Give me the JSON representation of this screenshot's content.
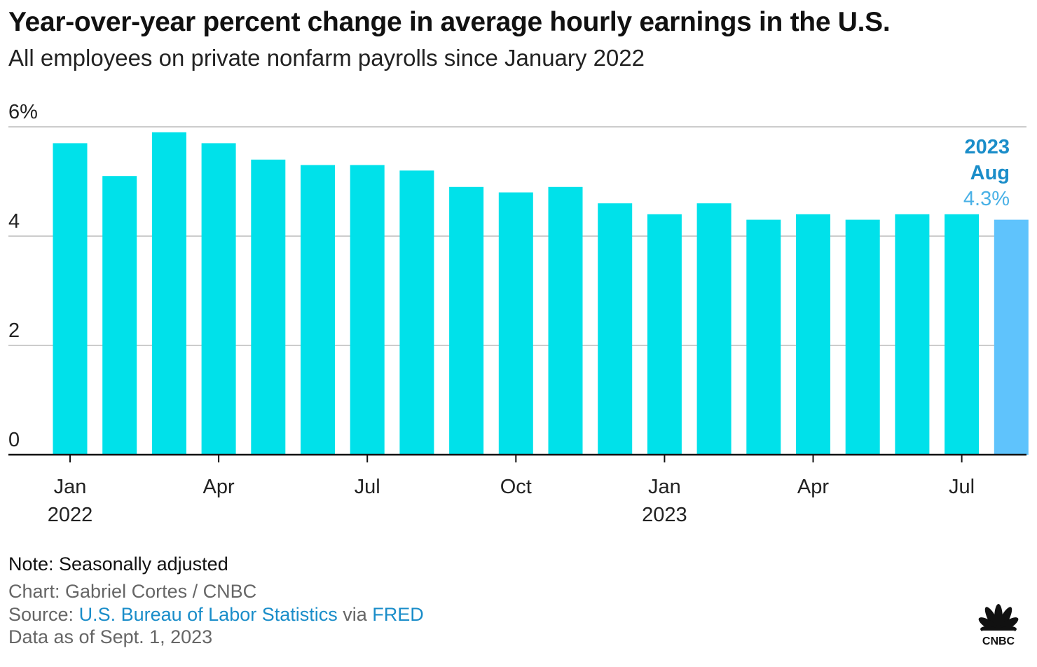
{
  "header": {
    "title": "Year-over-year percent change in average hourly earnings in the U.S.",
    "subtitle": "All employees on private nonfarm payrolls since January 2022"
  },
  "chart_data": {
    "type": "bar",
    "title": "Year-over-year percent change in average hourly earnings in the U.S.",
    "subtitle": "All employees on private nonfarm payrolls since January 2022",
    "xlabel": "",
    "ylabel": "",
    "ylim": [
      0,
      6
    ],
    "grid": true,
    "categories": [
      "Jan 2022",
      "Feb 2022",
      "Mar 2022",
      "Apr 2022",
      "May 2022",
      "Jun 2022",
      "Jul 2022",
      "Aug 2022",
      "Sep 2022",
      "Oct 2022",
      "Nov 2022",
      "Dec 2022",
      "Jan 2023",
      "Feb 2023",
      "Mar 2023",
      "Apr 2023",
      "May 2023",
      "Jun 2023",
      "Jul 2023",
      "Aug 2023"
    ],
    "values": [
      5.7,
      5.1,
      5.9,
      5.7,
      5.4,
      5.3,
      5.3,
      5.2,
      4.9,
      4.8,
      4.9,
      4.6,
      4.4,
      4.6,
      4.3,
      4.4,
      4.3,
      4.4,
      4.4,
      4.3
    ],
    "highlight_index": 19,
    "colors": {
      "bar": "#00e1ea",
      "highlight": "#5fc3fc",
      "annotation_year": "#1a8dc9",
      "annotation_value": "#4ab1e6",
      "grid": "#cccccc",
      "axis": "#111111"
    },
    "y_ticks": [
      {
        "value": 0,
        "label": "0"
      },
      {
        "value": 2,
        "label": "2"
      },
      {
        "value": 4,
        "label": "4"
      },
      {
        "value": 6,
        "label": "6%"
      }
    ],
    "x_ticks": [
      {
        "index": 0,
        "label": "Jan",
        "sublabel": "2022"
      },
      {
        "index": 3,
        "label": "Apr",
        "sublabel": ""
      },
      {
        "index": 6,
        "label": "Jul",
        "sublabel": ""
      },
      {
        "index": 9,
        "label": "Oct",
        "sublabel": ""
      },
      {
        "index": 12,
        "label": "Jan",
        "sublabel": "2023"
      },
      {
        "index": 15,
        "label": "Apr",
        "sublabel": ""
      },
      {
        "index": 18,
        "label": "Jul",
        "sublabel": ""
      }
    ],
    "annotation": {
      "year": "2023",
      "month": "Aug",
      "value": "4.3%"
    }
  },
  "footer": {
    "note": "Note: Seasonally adjusted",
    "credit": "Chart: Gabriel Cortes / CNBC",
    "source_prefix": "Source: ",
    "source_link": "U.S. Bureau of Labor Statistics",
    "source_via": " via ",
    "source_link2": "FRED",
    "as_of": "Data as of Sept. 1, 2023"
  },
  "logo": {
    "text": "CNBC",
    "icon": "peacock-logo-icon"
  }
}
